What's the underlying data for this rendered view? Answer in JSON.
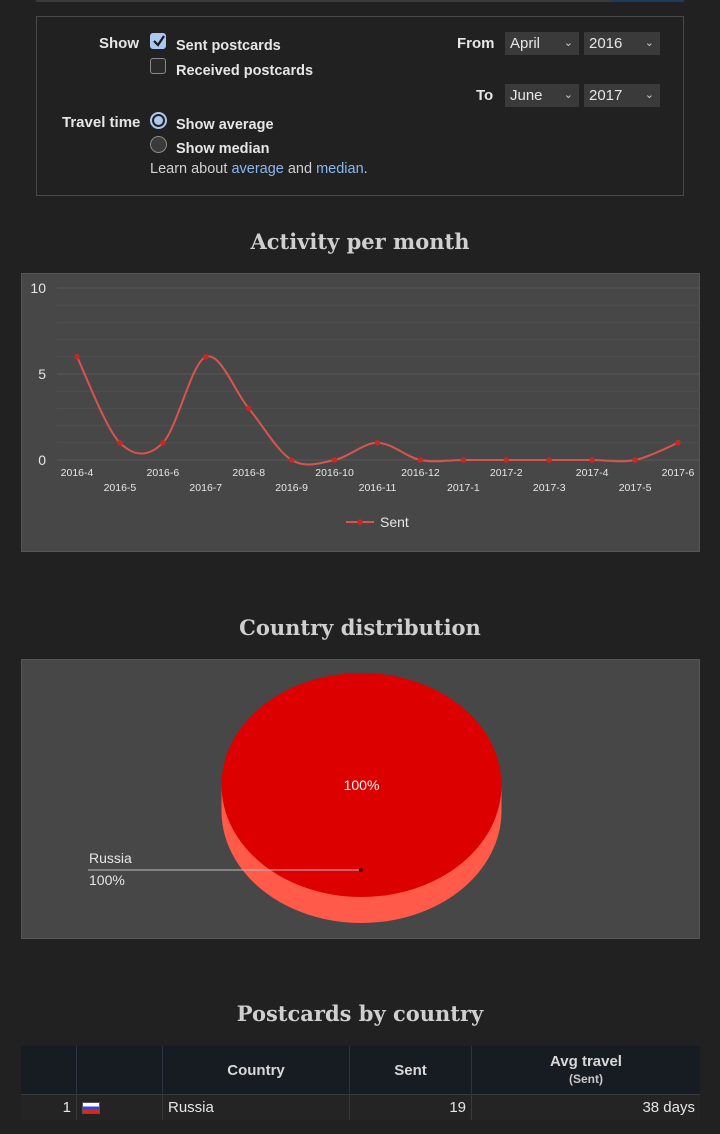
{
  "filters": {
    "show_label": "Show",
    "sent_label": "Sent postcards",
    "sent_checked": true,
    "received_label": "Received postcards",
    "received_checked": false,
    "travel_label": "Travel time",
    "average_label": "Show average",
    "median_label": "Show median",
    "selected_travel": "average",
    "learn_prefix": "Learn about ",
    "learn_average": "average",
    "learn_and": " and ",
    "learn_median": "median",
    "learn_suffix": ".",
    "from_label": "From",
    "from_month": "April",
    "from_year": "2016",
    "to_label": "To",
    "to_month": "June",
    "to_year": "2017"
  },
  "sections": {
    "activity_title": "Activity per month",
    "country_title": "Country distribution",
    "table_title": "Postcards by country"
  },
  "chart_data": [
    {
      "type": "line",
      "title": "Activity per month",
      "x": [
        "2016-4",
        "2016-5",
        "2016-6",
        "2016-7",
        "2016-8",
        "2016-9",
        "2016-10",
        "2016-11",
        "2016-12",
        "2017-1",
        "2017-2",
        "2017-3",
        "2017-4",
        "2017-5",
        "2017-6"
      ],
      "series": [
        {
          "name": "Sent",
          "values": [
            6,
            1,
            1,
            6,
            3,
            0,
            0,
            1,
            0,
            0,
            0,
            0,
            0,
            0,
            1
          ],
          "color": "#d9534f"
        }
      ],
      "ylim": [
        0,
        10
      ],
      "yticks": [
        0,
        5,
        10
      ],
      "grid": true,
      "legend": "bottom",
      "smooth": true
    },
    {
      "type": "pie",
      "title": "Country distribution",
      "slices": [
        {
          "label": "Russia",
          "value": 100,
          "percent_label": "100%",
          "color": "#dc0000"
        }
      ],
      "three_d": true
    }
  ],
  "table": {
    "headers": [
      "",
      "",
      "Country",
      "Sent",
      "Avg travel"
    ],
    "sub_header": "(Sent)",
    "rows": [
      {
        "rank": "1",
        "flag": "russia-flag",
        "country": "Russia",
        "sent": "19",
        "avg_travel": "38 days"
      }
    ]
  }
}
